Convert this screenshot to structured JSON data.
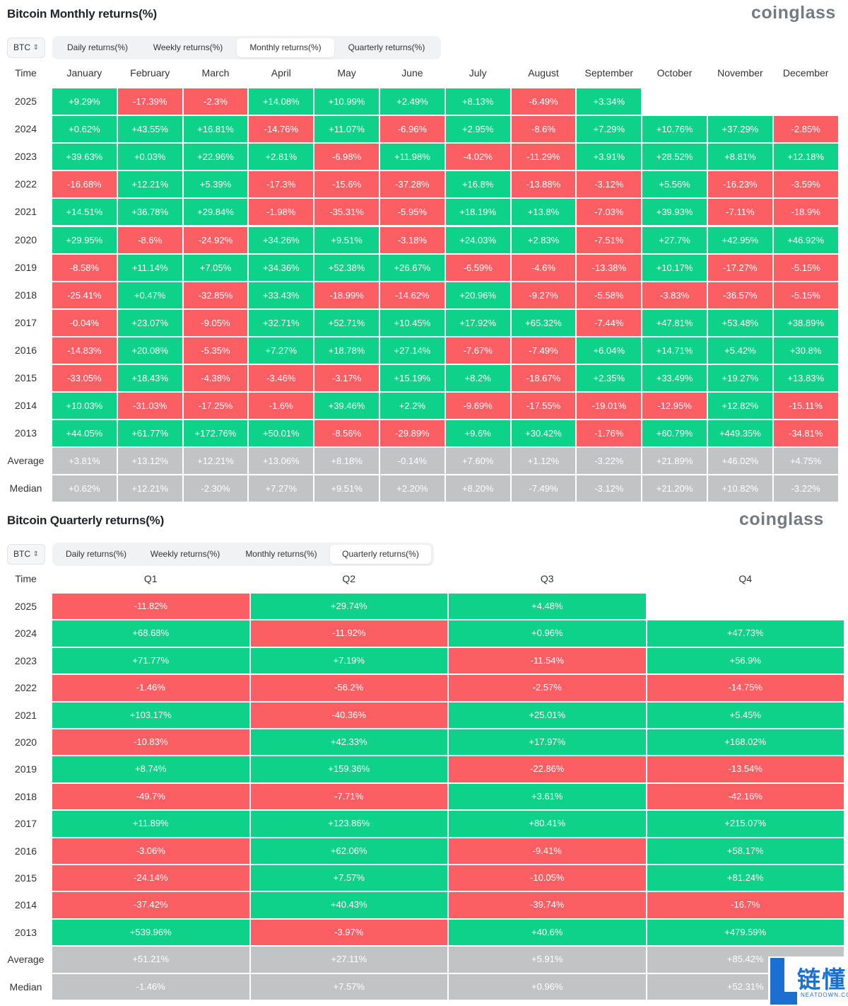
{
  "monthly": {
    "title": "Bitcoin Monthly returns(%)",
    "brand": "coinglass",
    "asset_select": {
      "value": "BTC"
    },
    "tabs": [
      "Daily returns(%)",
      "Weekly returns(%)",
      "Monthly returns(%)",
      "Quarterly returns(%)"
    ],
    "active_tab": 2,
    "corner_label": "Time",
    "columns": [
      "January",
      "February",
      "March",
      "April",
      "May",
      "June",
      "July",
      "August",
      "September",
      "October",
      "November",
      "December"
    ],
    "rows": [
      {
        "label": "2025",
        "values": [
          "+9.29%",
          "-17.39%",
          "-2.3%",
          "+14.08%",
          "+10.99%",
          "+2.49%",
          "+8.13%",
          "-6.49%",
          "+3.34%",
          "",
          "",
          ""
        ]
      },
      {
        "label": "2024",
        "values": [
          "+0.62%",
          "+43.55%",
          "+16.81%",
          "-14.76%",
          "+11.07%",
          "-6.96%",
          "+2.95%",
          "-8.6%",
          "+7.29%",
          "+10.76%",
          "+37.29%",
          "-2.85%"
        ]
      },
      {
        "label": "2023",
        "values": [
          "+39.63%",
          "+0.03%",
          "+22.96%",
          "+2.81%",
          "-6.98%",
          "+11.98%",
          "-4.02%",
          "-11.29%",
          "+3.91%",
          "+28.52%",
          "+8.81%",
          "+12.18%"
        ]
      },
      {
        "label": "2022",
        "values": [
          "-16.68%",
          "+12.21%",
          "+5.39%",
          "-17.3%",
          "-15.6%",
          "-37.28%",
          "+16.8%",
          "-13.88%",
          "-3.12%",
          "+5.56%",
          "-16.23%",
          "-3.59%"
        ]
      },
      {
        "label": "2021",
        "values": [
          "+14.51%",
          "+36.78%",
          "+29.84%",
          "-1.98%",
          "-35.31%",
          "-5.95%",
          "+18.19%",
          "+13.8%",
          "-7.03%",
          "+39.93%",
          "-7.11%",
          "-18.9%"
        ]
      },
      {
        "label": "2020",
        "values": [
          "+29.95%",
          "-8.6%",
          "-24.92%",
          "+34.26%",
          "+9.51%",
          "-3.18%",
          "+24.03%",
          "+2.83%",
          "-7.51%",
          "+27.7%",
          "+42.95%",
          "+46.92%"
        ]
      },
      {
        "label": "2019",
        "values": [
          "-8.58%",
          "+11.14%",
          "+7.05%",
          "+34.36%",
          "+52.38%",
          "+26.67%",
          "-6.59%",
          "-4.6%",
          "-13.38%",
          "+10.17%",
          "-17.27%",
          "-5.15%"
        ]
      },
      {
        "label": "2018",
        "values": [
          "-25.41%",
          "+0.47%",
          "-32.85%",
          "+33.43%",
          "-18.99%",
          "-14.62%",
          "+20.96%",
          "-9.27%",
          "-5.58%",
          "-3.83%",
          "-36.57%",
          "-5.15%"
        ]
      },
      {
        "label": "2017",
        "values": [
          "-0.04%",
          "+23.07%",
          "-9.05%",
          "+32.71%",
          "+52.71%",
          "+10.45%",
          "+17.92%",
          "+65.32%",
          "-7.44%",
          "+47.81%",
          "+53.48%",
          "+38.89%"
        ]
      },
      {
        "label": "2016",
        "values": [
          "-14.83%",
          "+20.08%",
          "-5.35%",
          "+7.27%",
          "+18.78%",
          "+27.14%",
          "-7.67%",
          "-7.49%",
          "+6.04%",
          "+14.71%",
          "+5.42%",
          "+30.8%"
        ]
      },
      {
        "label": "2015",
        "values": [
          "-33.05%",
          "+18.43%",
          "-4.38%",
          "-3.46%",
          "-3.17%",
          "+15.19%",
          "+8.2%",
          "-18.67%",
          "+2.35%",
          "+33.49%",
          "+19.27%",
          "+13.83%"
        ]
      },
      {
        "label": "2014",
        "values": [
          "+10.03%",
          "-31.03%",
          "-17.25%",
          "-1.6%",
          "+39.46%",
          "+2.2%",
          "-9.69%",
          "-17.55%",
          "-19.01%",
          "-12.95%",
          "+12.82%",
          "-15.11%"
        ]
      },
      {
        "label": "2013",
        "values": [
          "+44.05%",
          "+61.77%",
          "+172.76%",
          "+50.01%",
          "-8.56%",
          "-29.89%",
          "+9.6%",
          "+30.42%",
          "-1.76%",
          "+60.79%",
          "+449.35%",
          "-34.81%"
        ]
      }
    ],
    "summary": [
      {
        "label": "Average",
        "values": [
          "+3.81%",
          "+13.12%",
          "+12.21%",
          "+13.06%",
          "+8.18%",
          "-0.14%",
          "+7.60%",
          "+1.12%",
          "-3.22%",
          "+21.89%",
          "+46.02%",
          "+4.75%"
        ]
      },
      {
        "label": "Median",
        "values": [
          "+0.62%",
          "+12.21%",
          "-2.30%",
          "+7.27%",
          "+9.51%",
          "+2.20%",
          "+8.20%",
          "-7.49%",
          "-3.12%",
          "+21.20%",
          "+10.82%",
          "-3.22%"
        ]
      }
    ]
  },
  "quarterly": {
    "title": "Bitcoin Quarterly returns(%)",
    "brand": "coinglass",
    "asset_select": {
      "value": "BTC"
    },
    "tabs": [
      "Daily returns(%)",
      "Weekly returns(%)",
      "Monthly returns(%)",
      "Quarterly returns(%)"
    ],
    "active_tab": 3,
    "corner_label": "Time",
    "columns": [
      "Q1",
      "Q2",
      "Q3",
      "Q4"
    ],
    "rows": [
      {
        "label": "2025",
        "values": [
          "-11.82%",
          "+29.74%",
          "+4.48%",
          ""
        ]
      },
      {
        "label": "2024",
        "values": [
          "+68.68%",
          "-11.92%",
          "+0.96%",
          "+47.73%"
        ]
      },
      {
        "label": "2023",
        "values": [
          "+71.77%",
          "+7.19%",
          "-11.54%",
          "+56.9%"
        ]
      },
      {
        "label": "2022",
        "values": [
          "-1.46%",
          "-56.2%",
          "-2.57%",
          "-14.75%"
        ]
      },
      {
        "label": "2021",
        "values": [
          "+103.17%",
          "-40.36%",
          "+25.01%",
          "+5.45%"
        ]
      },
      {
        "label": "2020",
        "values": [
          "-10.83%",
          "+42.33%",
          "+17.97%",
          "+168.02%"
        ]
      },
      {
        "label": "2019",
        "values": [
          "+8.74%",
          "+159.36%",
          "-22.86%",
          "-13.54%"
        ]
      },
      {
        "label": "2018",
        "values": [
          "-49.7%",
          "-7.71%",
          "+3.61%",
          "-42.16%"
        ]
      },
      {
        "label": "2017",
        "values": [
          "+11.89%",
          "+123.86%",
          "+80.41%",
          "+215.07%"
        ]
      },
      {
        "label": "2016",
        "values": [
          "-3.06%",
          "+62.06%",
          "-9.41%",
          "+58.17%"
        ]
      },
      {
        "label": "2015",
        "values": [
          "-24.14%",
          "+7.57%",
          "-10.05%",
          "+81.24%"
        ]
      },
      {
        "label": "2014",
        "values": [
          "-37.42%",
          "+40.43%",
          "-39.74%",
          "-16.7%"
        ]
      },
      {
        "label": "2013",
        "values": [
          "+539.96%",
          "-3.97%",
          "+40.6%",
          "+479.59%"
        ]
      }
    ],
    "summary": [
      {
        "label": "Average",
        "values": [
          "+51.21%",
          "+27.11%",
          "+5.91%",
          "+85.42%"
        ]
      },
      {
        "label": "Median",
        "values": [
          "-1.46%",
          "+7.57%",
          "+0.96%",
          "+52.31%"
        ]
      }
    ]
  },
  "watermark": {
    "logo_text": "链懂",
    "sub_text": "NEATDOWN.COM"
  },
  "colors": {
    "positive": "#0ed18a",
    "negative": "#fb5f63",
    "summary": "#c2c3c5"
  }
}
